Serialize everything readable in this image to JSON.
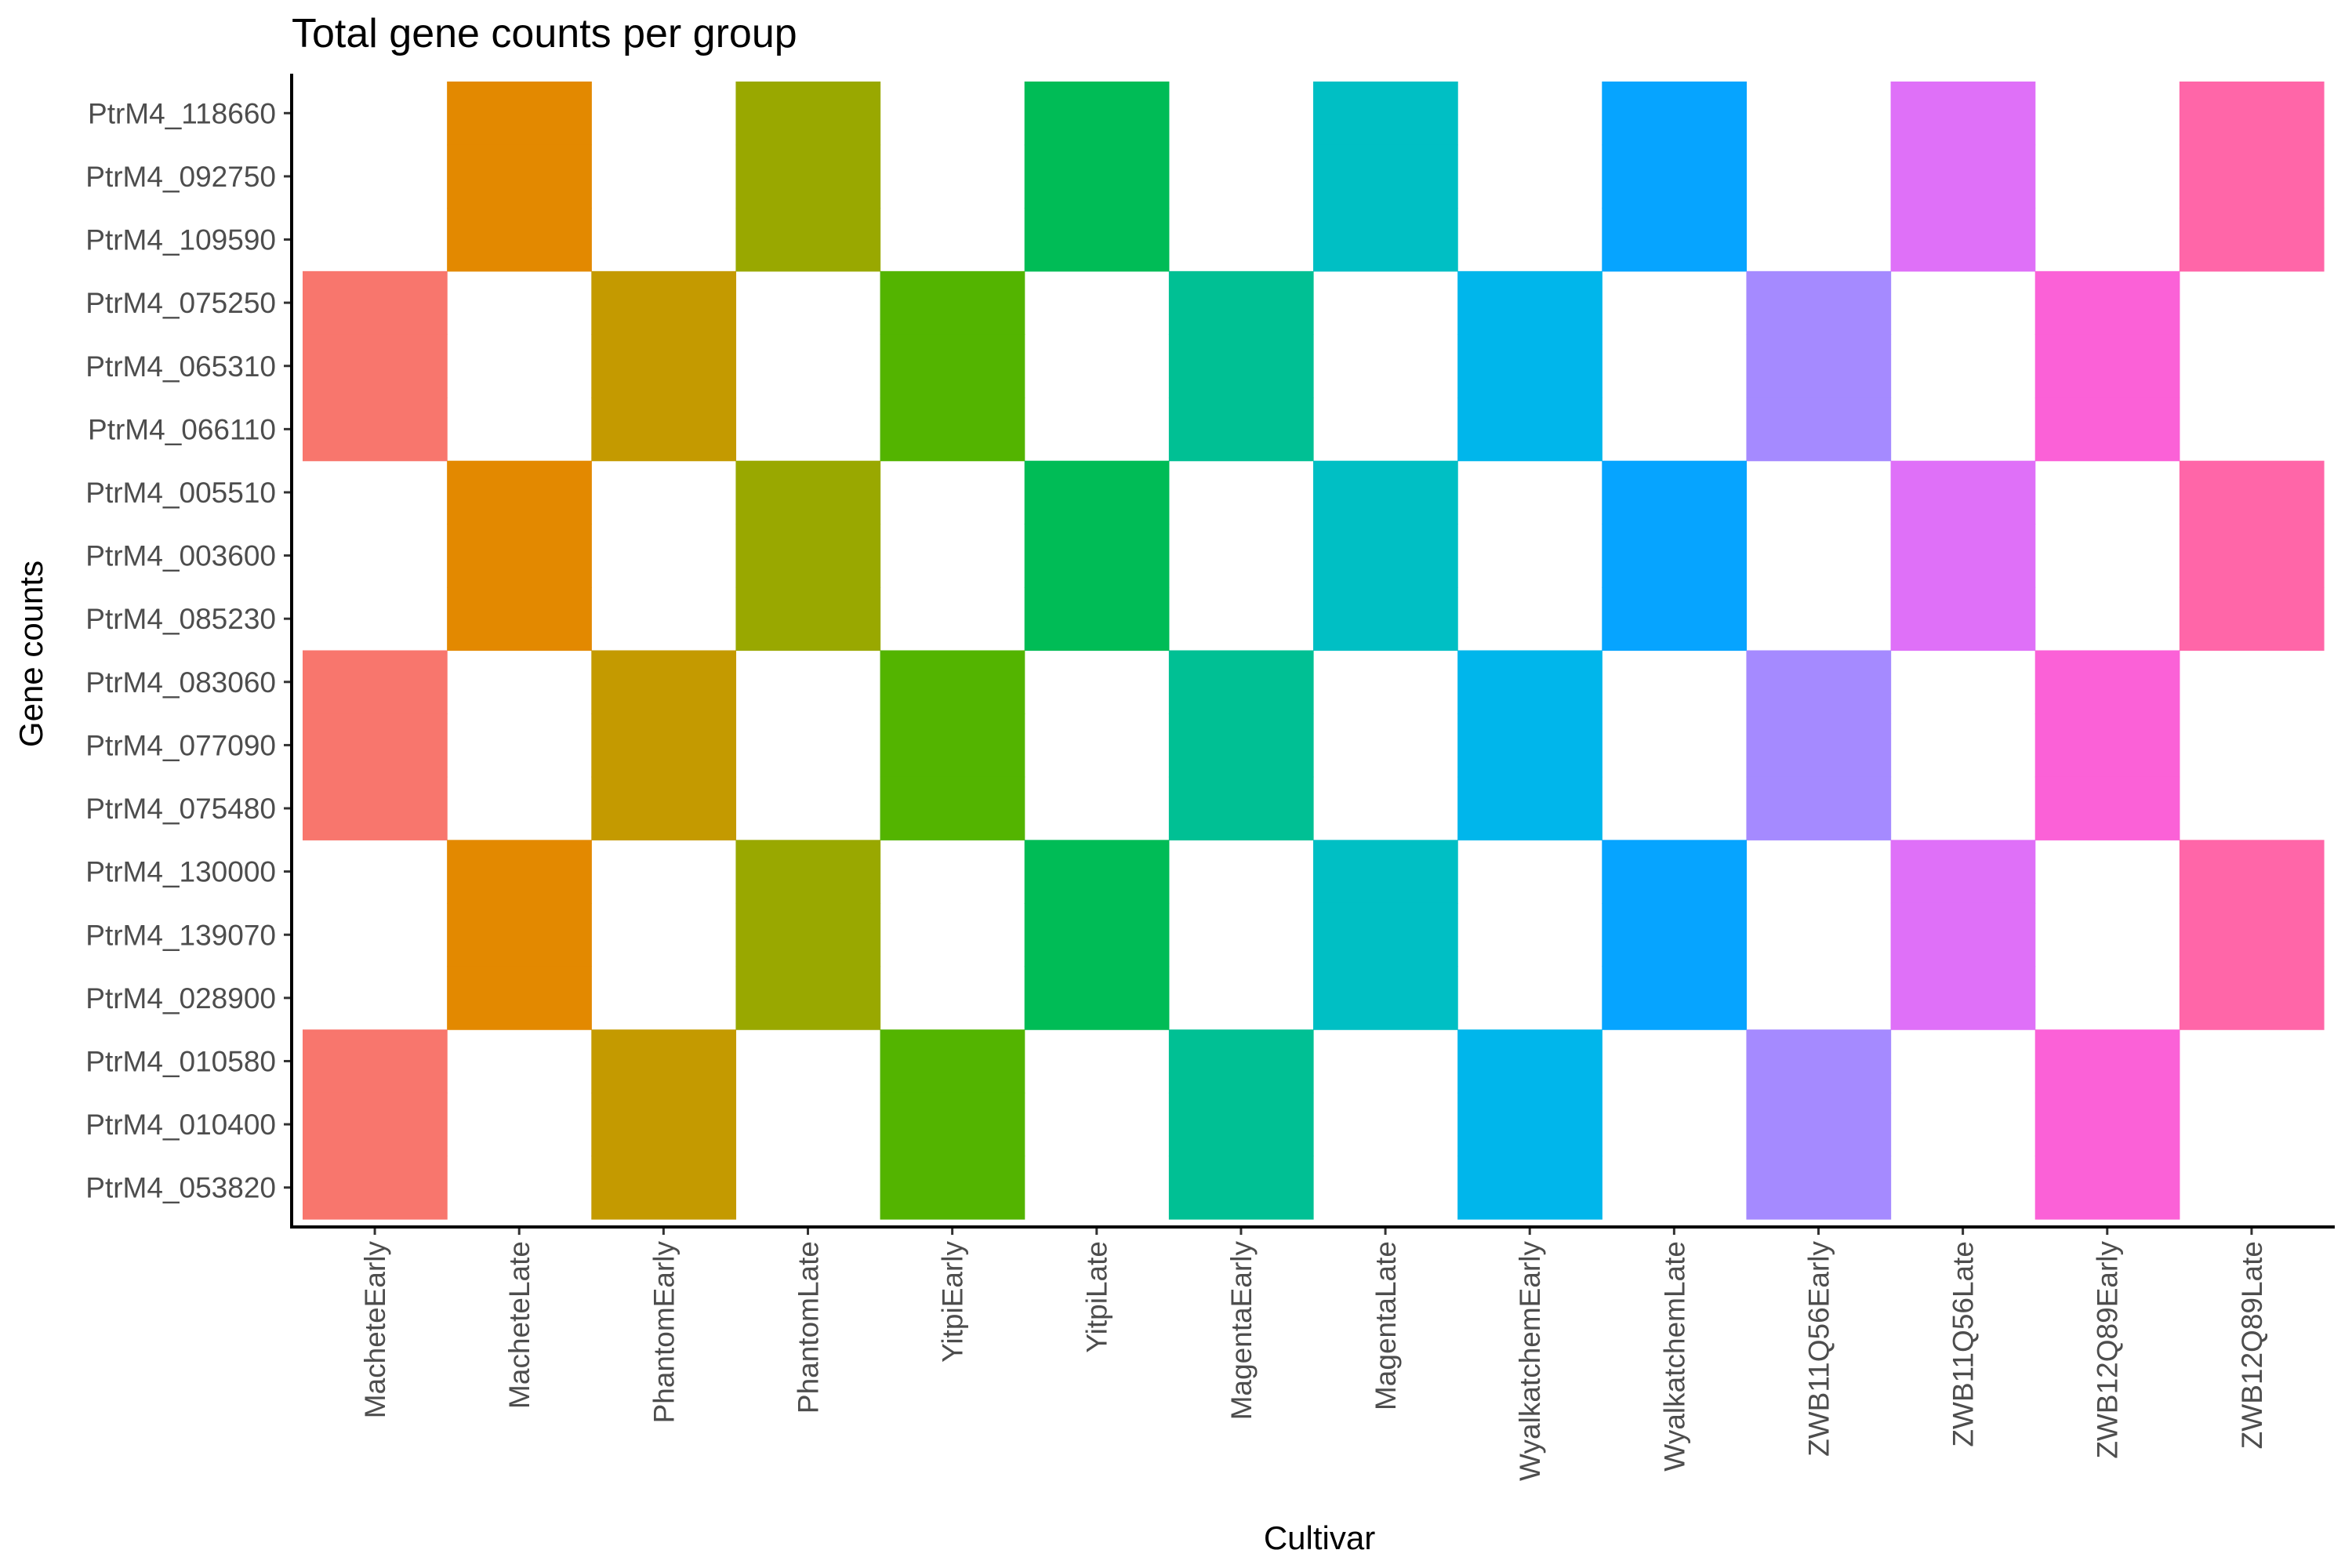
{
  "chart_data": {
    "type": "heatmap",
    "title": "Total gene counts per group",
    "xlabel": "Cultivar",
    "ylabel": "Gene counts",
    "grid": false,
    "legend": "none",
    "categories": [
      "MacheteEarly",
      "MacheteLate",
      "PhantomEarly",
      "PhantomLate",
      "YitpiEarly",
      "YitpiLate",
      "MagentaEarly",
      "MagentaLate",
      "WyalkatchemEarly",
      "WyalkatchemLate",
      "ZWB11Q56Early",
      "ZWB11Q56Late",
      "ZWB12Q89Early",
      "ZWB12Q89Late"
    ],
    "colors": [
      "#F8766D",
      "#E38900",
      "#C49A00",
      "#99A800",
      "#53B400",
      "#00BC56",
      "#00C094",
      "#00BFC4",
      "#00B6EB",
      "#06A4FF",
      "#A58AFF",
      "#DF70F8",
      "#FB61D7",
      "#FF66A8"
    ],
    "genes": [
      "PtrM4_118660",
      "PtrM4_092750",
      "PtrM4_109590",
      "PtrM4_075250",
      "PtrM4_065310",
      "PtrM4_066110",
      "PtrM4_005510",
      "PtrM4_003600",
      "PtrM4_085230",
      "PtrM4_083060",
      "PtrM4_077090",
      "PtrM4_075480",
      "PtrM4_130000",
      "PtrM4_139070",
      "PtrM4_028900",
      "PtrM4_010580",
      "PtrM4_010400",
      "PtrM4_053820"
    ],
    "presence": [
      [
        0,
        1,
        0,
        1,
        0,
        1,
        0,
        1,
        0,
        1,
        0,
        1,
        0,
        1
      ],
      [
        0,
        1,
        0,
        1,
        0,
        1,
        0,
        1,
        0,
        1,
        0,
        1,
        0,
        1
      ],
      [
        0,
        1,
        0,
        1,
        0,
        1,
        0,
        1,
        0,
        1,
        0,
        1,
        0,
        1
      ],
      [
        1,
        0,
        1,
        0,
        1,
        0,
        1,
        0,
        1,
        0,
        1,
        0,
        1,
        0
      ],
      [
        1,
        0,
        1,
        0,
        1,
        0,
        1,
        0,
        1,
        0,
        1,
        0,
        1,
        0
      ],
      [
        1,
        0,
        1,
        0,
        1,
        0,
        1,
        0,
        1,
        0,
        1,
        0,
        1,
        0
      ],
      [
        0,
        1,
        0,
        1,
        0,
        1,
        0,
        1,
        0,
        1,
        0,
        1,
        0,
        1
      ],
      [
        0,
        1,
        0,
        1,
        0,
        1,
        0,
        1,
        0,
        1,
        0,
        1,
        0,
        1
      ],
      [
        0,
        1,
        0,
        1,
        0,
        1,
        0,
        1,
        0,
        1,
        0,
        1,
        0,
        1
      ],
      [
        1,
        0,
        1,
        0,
        1,
        0,
        1,
        0,
        1,
        0,
        1,
        0,
        1,
        0
      ],
      [
        1,
        0,
        1,
        0,
        1,
        0,
        1,
        0,
        1,
        0,
        1,
        0,
        1,
        0
      ],
      [
        1,
        0,
        1,
        0,
        1,
        0,
        1,
        0,
        1,
        0,
        1,
        0,
        1,
        0
      ],
      [
        0,
        1,
        0,
        1,
        0,
        1,
        0,
        1,
        0,
        1,
        0,
        1,
        0,
        1
      ],
      [
        0,
        1,
        0,
        1,
        0,
        1,
        0,
        1,
        0,
        1,
        0,
        1,
        0,
        1
      ],
      [
        0,
        1,
        0,
        1,
        0,
        1,
        0,
        1,
        0,
        1,
        0,
        1,
        0,
        1
      ],
      [
        1,
        0,
        1,
        0,
        1,
        0,
        1,
        0,
        1,
        0,
        1,
        0,
        1,
        0
      ],
      [
        1,
        0,
        1,
        0,
        1,
        0,
        1,
        0,
        1,
        0,
        1,
        0,
        1,
        0
      ],
      [
        1,
        0,
        1,
        0,
        1,
        0,
        1,
        0,
        1,
        0,
        1,
        0,
        1,
        0
      ]
    ]
  }
}
